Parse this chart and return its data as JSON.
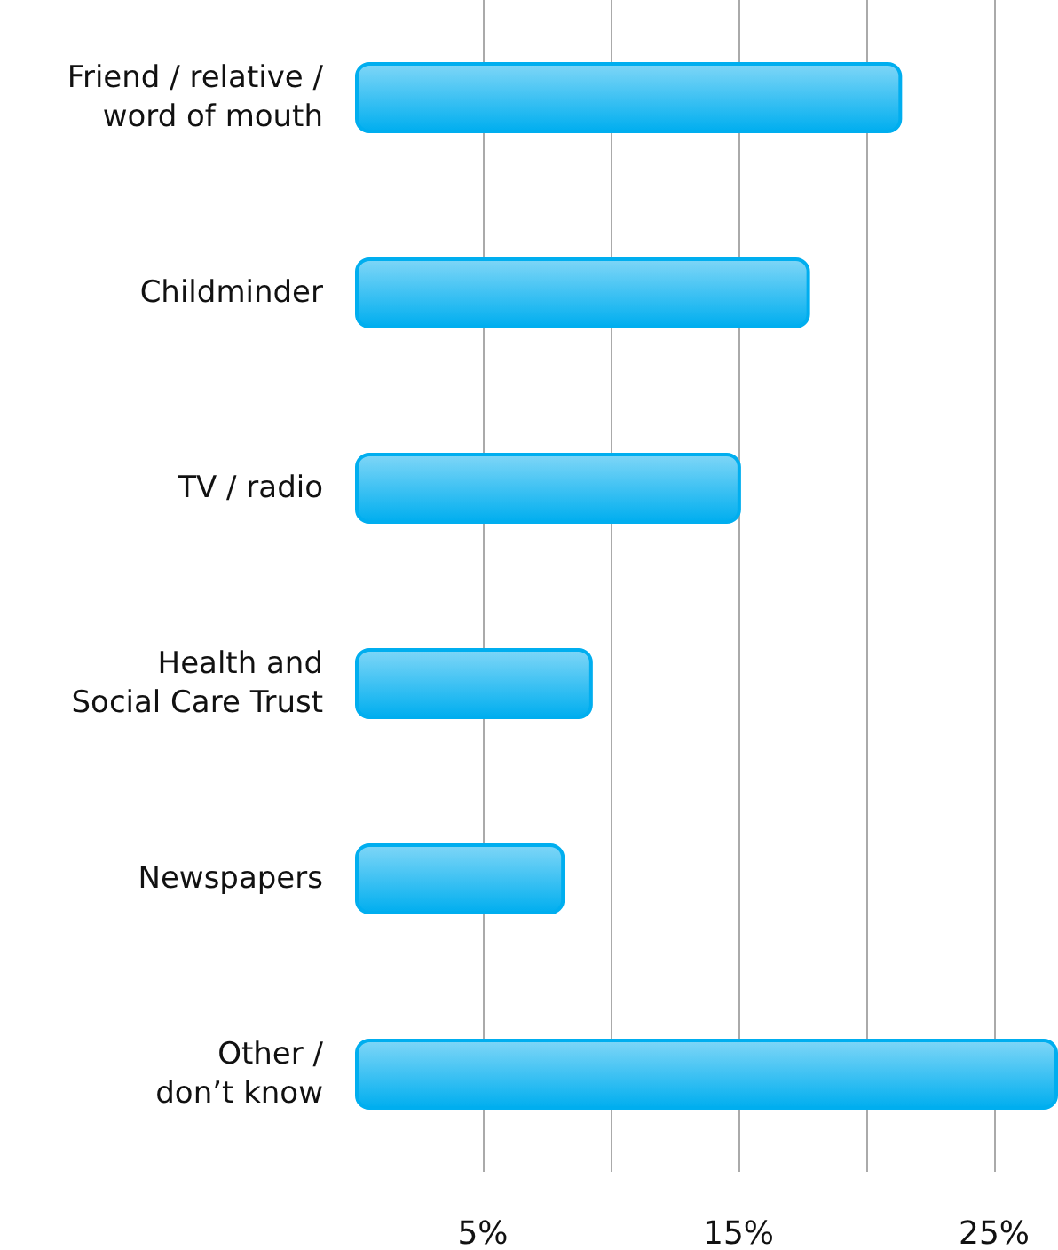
{
  "chart_data": {
    "type": "bar",
    "orientation": "horizontal",
    "categories": [
      "Friend / relative /\nword of mouth",
      "Childminder",
      "TV / radio",
      "Health and\nSocial Care Trust",
      "Newspapers",
      "Other /\ndon’t know"
    ],
    "values": [
      21.4,
      17.8,
      15.1,
      9.3,
      8.2,
      27.5
    ],
    "color": "#00aeef",
    "xlim": [
      0,
      27.5
    ],
    "xticks": [
      {
        "value": 5,
        "label": "5%"
      },
      {
        "value": 10,
        "label": null
      },
      {
        "value": 15,
        "label": "15%"
      },
      {
        "value": 20,
        "label": null
      },
      {
        "value": 25,
        "label": "25%"
      }
    ],
    "grid": "x"
  }
}
